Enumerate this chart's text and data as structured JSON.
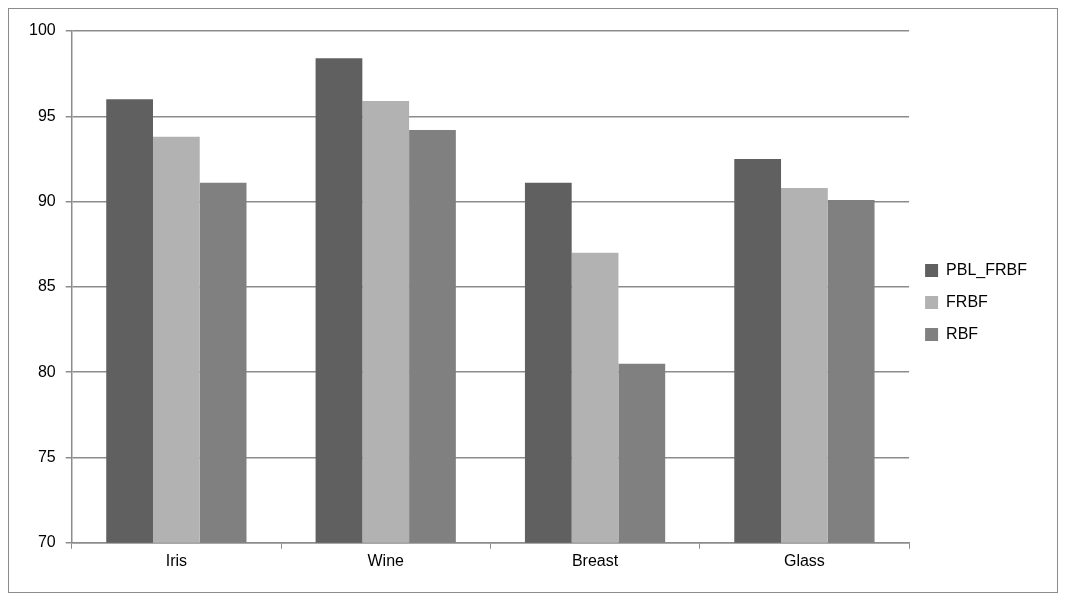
{
  "chart_data": {
    "type": "bar",
    "categories": [
      "Iris",
      "Wine",
      "Breast",
      "Glass"
    ],
    "series": [
      {
        "name": "PBL_FRBF",
        "color": "#606060",
        "values": [
          96.0,
          98.4,
          91.1,
          92.5
        ]
      },
      {
        "name": "FRBF",
        "color": "#b2b2b2",
        "values": [
          93.8,
          95.9,
          87.0,
          90.8
        ]
      },
      {
        "name": "RBF",
        "color": "#808080",
        "values": [
          91.1,
          94.2,
          80.5,
          90.1
        ]
      }
    ],
    "ylim": [
      70,
      100
    ],
    "yticks": [
      70,
      75,
      80,
      85,
      90,
      95,
      100
    ],
    "grid": "y",
    "legend": "right"
  }
}
